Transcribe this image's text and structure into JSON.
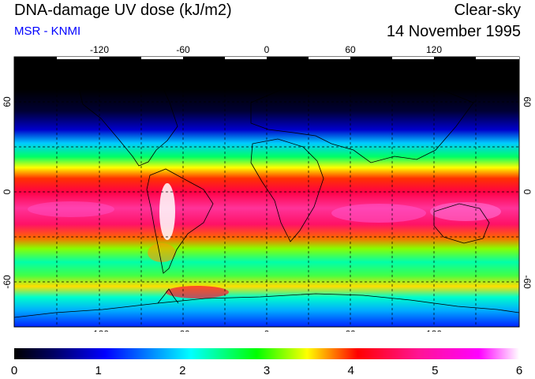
{
  "header": {
    "title": "DNA-damage UV dose (kJ/m2)",
    "source": "MSR - KNMI",
    "condition": "Clear-sky",
    "date": "14 November 1995"
  },
  "colors": {
    "title": "#000000",
    "source": "#0000ff",
    "scale": [
      "#000000",
      "#000066",
      "#0000ff",
      "#00ffff",
      "#00ff00",
      "#ffff00",
      "#ff0000",
      "#ff1493",
      "#ff00ff",
      "#ffffff"
    ]
  },
  "map": {
    "lon_ticks": [
      "-120",
      "-60",
      "0",
      "60",
      "120"
    ],
    "lat_ticks": [
      "60",
      "0",
      "-60"
    ],
    "lat_ticks_right": [
      "60",
      "0",
      "-60"
    ]
  },
  "colorbar": {
    "tick_labels": [
      "0",
      "1",
      "2",
      "3",
      "4",
      "5",
      "6"
    ],
    "min": 0,
    "max": 6
  }
}
